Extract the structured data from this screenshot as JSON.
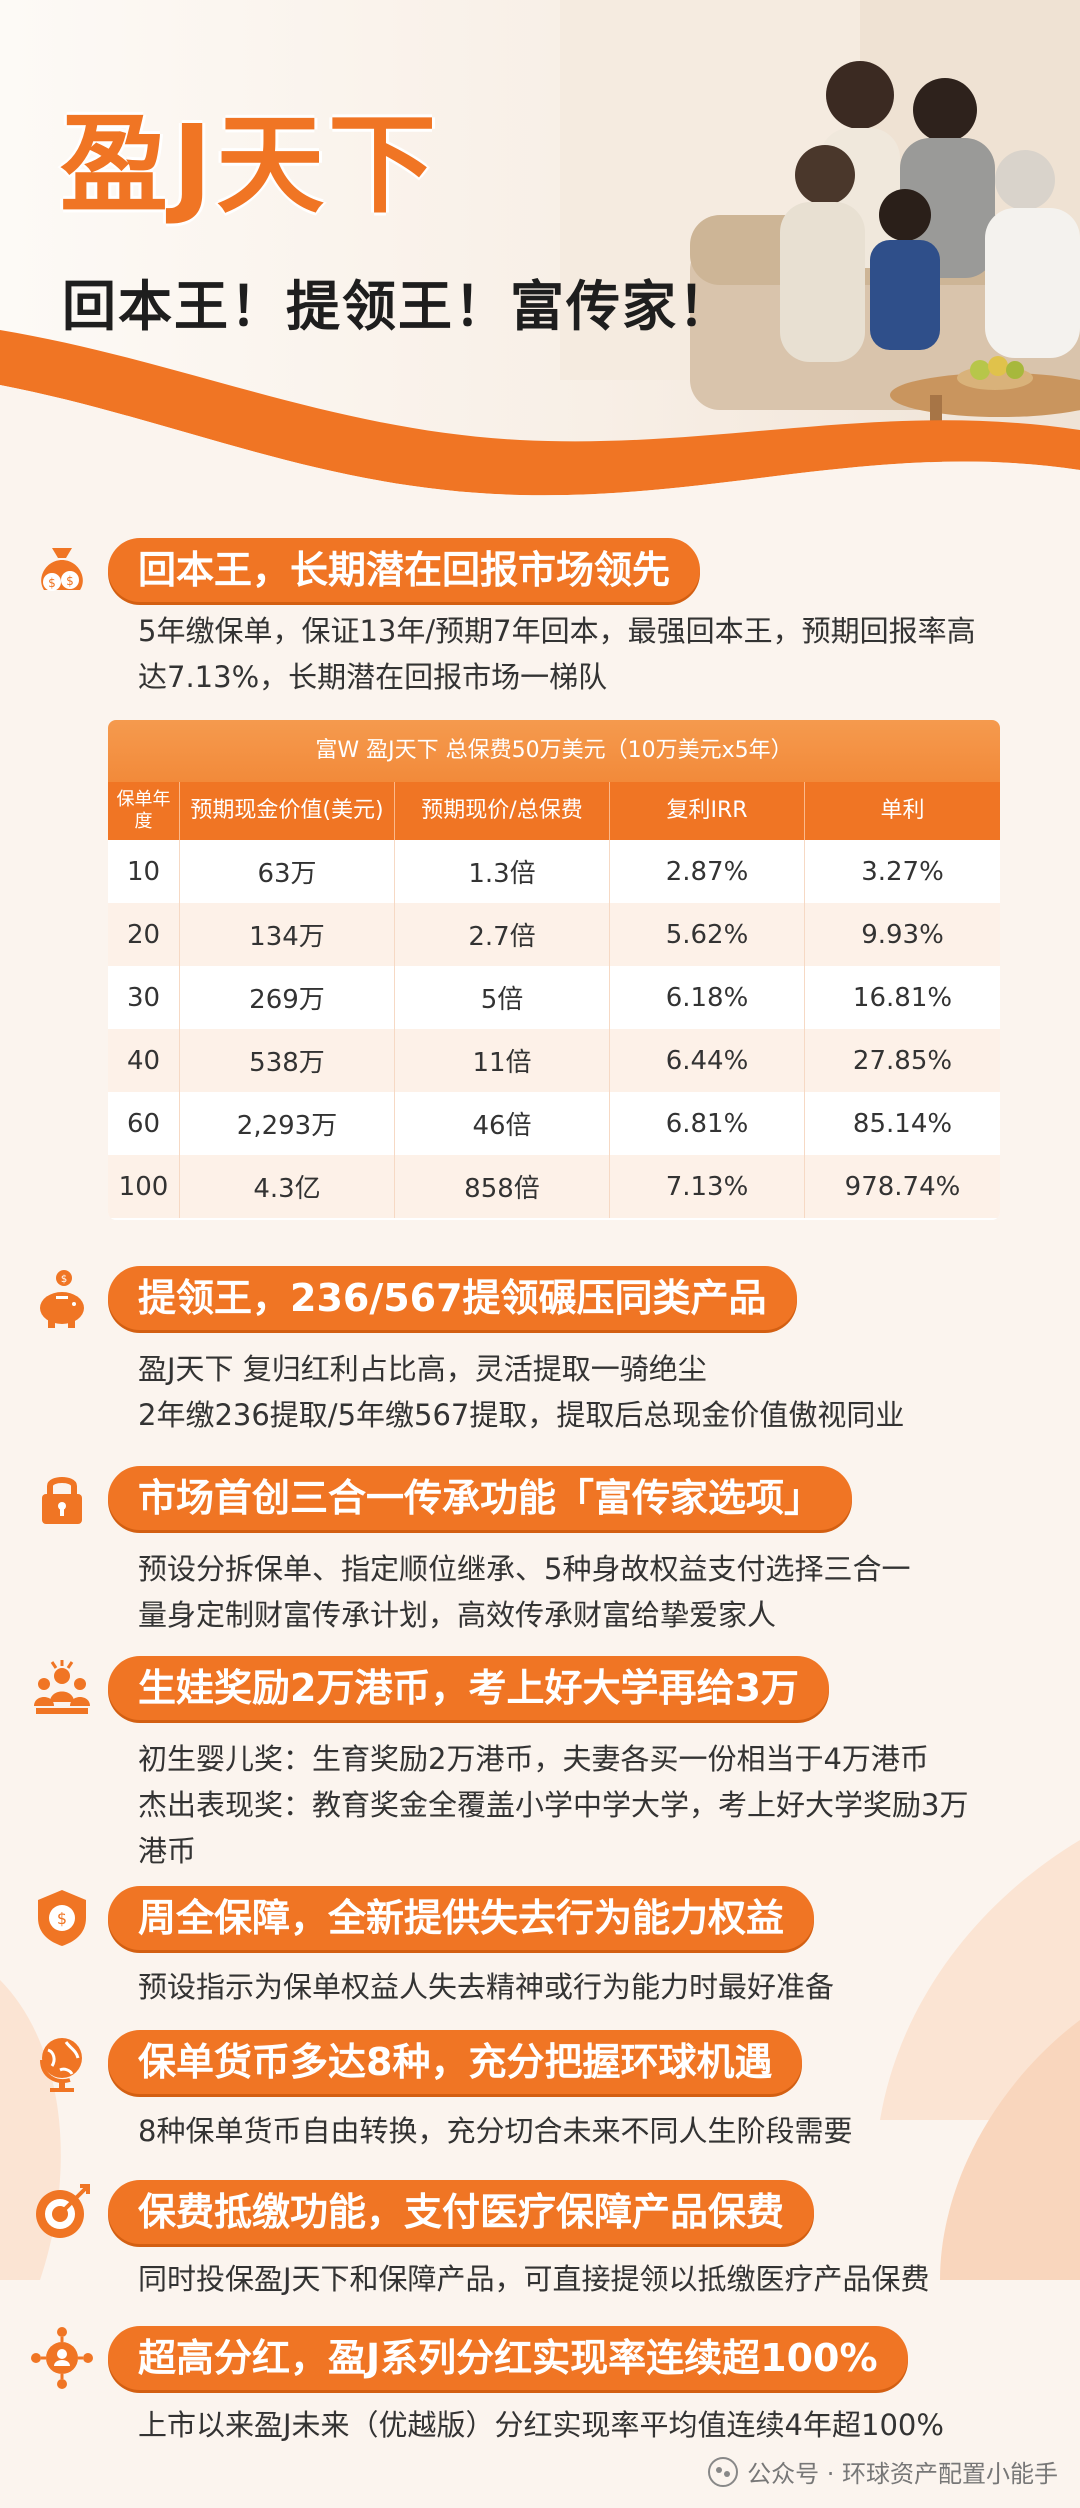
{
  "hero": {
    "title": "盈J天下",
    "subtitle": "回本王！提领王！富传家！"
  },
  "sections": [
    {
      "icon": "money-bag-icon",
      "title": "回本王，长期潜在回报市场领先",
      "lines": [
        "5年缴保单，保证13年/预期7年回本，最强回本王，预期回报率高",
        "达7.13%，长期潜在回报市场一梯队"
      ]
    },
    {
      "icon": "piggy-bank-icon",
      "title": "提领王，236/567提领碾压同类产品",
      "lines": [
        "盈J天下 复归红利占比高，灵活提取一骑绝尘",
        "2年缴236提取/5年缴567提取，提取后总现金价值傲视同业"
      ]
    },
    {
      "icon": "lock-icon",
      "title": "市场首创三合一传承功能「富传家选项」",
      "lines": [
        "预设分拆保单、指定顺位继承、5种身故权益支付选择三合一",
        "量身定制财富传承计划，高效传承财富给挚爱家人"
      ]
    },
    {
      "icon": "family-icon",
      "title": "生娃奖励2万港币，考上好大学再给3万",
      "lines": [
        "初生婴儿奖：生育奖励2万港币，夫妻各买一份相当于4万港币",
        "杰出表现奖：教育奖金全覆盖小学中学大学，考上好大学奖励3万",
        "港币"
      ]
    },
    {
      "icon": "shield-icon",
      "title": "周全保障，全新提供失去行为能力权益",
      "lines": [
        "预设指示为保单权益人失去精神或行为能力时最好准备"
      ]
    },
    {
      "icon": "globe-icon",
      "title": "保单货币多达8种，充分把握环球机遇",
      "lines": [
        "8种保单货币自由转换，充分切合未来不同人生阶段需要"
      ]
    },
    {
      "icon": "target-icon",
      "title": "保费抵缴功能，支付医疗保障产品保费",
      "lines": [
        "同时投保盈J天下和保障产品，可直接提领以抵缴医疗产品保费"
      ]
    },
    {
      "icon": "network-icon",
      "title": "超高分红，盈J系列分红实现率连续超100%",
      "lines": [
        "上市以来盈J未来（优越版）分红实现率平均值连续4年超100%"
      ]
    }
  ],
  "table": {
    "caption": "富W 盈J天下 总保费50万美元（10万美元x5年）",
    "headers": [
      "保单年度",
      "预期现金价值(美元)",
      "预期现价/总保费",
      "复利IRR",
      "单利"
    ],
    "rows": [
      [
        "10",
        "63万",
        "1.3倍",
        "2.87%",
        "3.27%"
      ],
      [
        "20",
        "134万",
        "2.7倍",
        "5.62%",
        "9.93%"
      ],
      [
        "30",
        "269万",
        "5倍",
        "6.18%",
        "16.81%"
      ],
      [
        "40",
        "538万",
        "11倍",
        "6.44%",
        "27.85%"
      ],
      [
        "60",
        "2,293万",
        "46倍",
        "6.81%",
        "85.14%"
      ],
      [
        "100",
        "4.3亿",
        "858倍",
        "7.13%",
        "978.74%"
      ]
    ]
  },
  "watermark": "公众号 · 环球资产配置小能手",
  "colors": {
    "accent": "#f07524",
    "background": "#fbf4ee"
  }
}
